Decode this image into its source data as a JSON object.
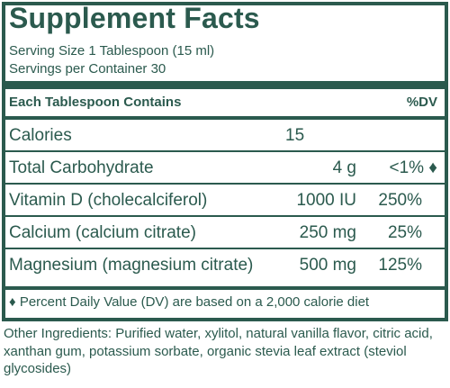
{
  "label": {
    "title": "Supplement Facts",
    "serving_size": "Serving Size 1 Tablespoon (15 ml)",
    "servings_per_container": "Servings per Container 30",
    "header_left": "Each Tablespoon Contains",
    "header_right": "%DV",
    "rows": [
      {
        "name": "Calories",
        "amount": "15",
        "dv": ""
      },
      {
        "name": "Total Carbohydrate",
        "amount": "4 g",
        "dv": "<1% ♦"
      },
      {
        "name": "Vitamin D (cholecalciferol)",
        "amount": "1000 IU",
        "dv": "250%"
      },
      {
        "name": "Calcium (calcium citrate)",
        "amount": "250 mg",
        "dv": "25%"
      },
      {
        "name": "Magnesium (magnesium citrate)",
        "amount": "500 mg",
        "dv": "125%"
      }
    ],
    "footnote": "♦ Percent Daily Value (DV) are based on a 2,000 calorie diet"
  },
  "other_ingredients": "Other Ingredients: Purified water, xylitol, natural vanilla flavor, citric acid, xanthan gum, potassium sorbate, organic stevia leaf extract (steviol glycosides)",
  "colors": {
    "brand": "#2b5a4e",
    "background": "#ffffff"
  }
}
